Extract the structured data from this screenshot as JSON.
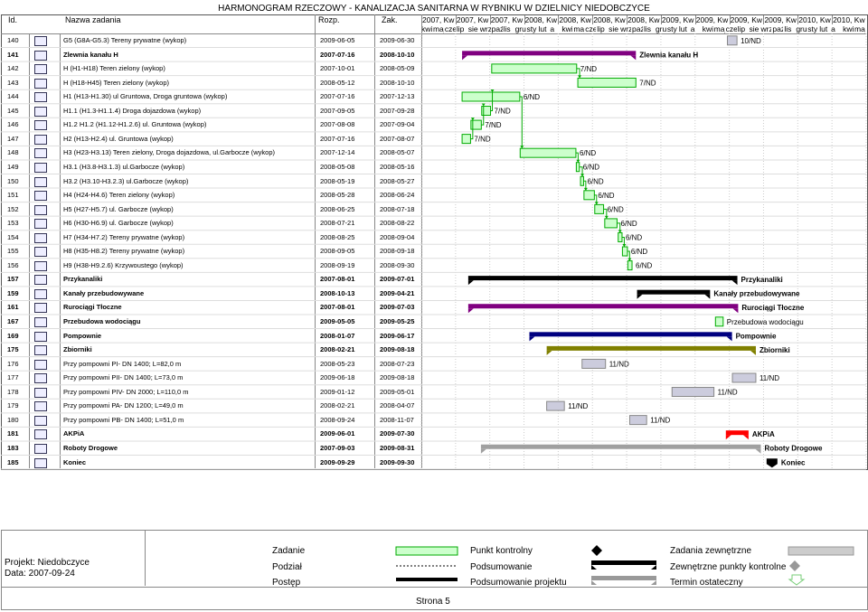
{
  "title": "HARMONOGRAM RZECZOWY - KANALIZACJA SANITARNA W RYBNIKU W DZIELNICY NIEDOBCZYCE",
  "columns": {
    "id": "Id.",
    "name": "Nazwa zadania",
    "start": "Rozp.",
    "end": "Zak."
  },
  "timeline_years": [
    "2007, Kw",
    "2007, Kw",
    "2007, Kw",
    "2008, Kw",
    "2008, Kw",
    "2008, Kw",
    "2008, Kw",
    "2009, Kw",
    "2009, Kw",
    "2009, Kw",
    "2009, Kw",
    "2010, Kw",
    "2010, Kw"
  ],
  "timeline_months": [
    "kwi",
    "maj",
    "cze",
    "lip",
    "sie",
    "wrz",
    "paź",
    "lis",
    "gru",
    "sty",
    "lut",
    "a",
    "kwi",
    "maj",
    "cze",
    "lip",
    "sie",
    "wrz",
    "paź",
    "lis",
    "gru",
    "sty",
    "lut",
    "a",
    "kwi",
    "maj",
    "cze",
    "lip",
    "sie",
    "wrz",
    "paź",
    "lis",
    "gru",
    "sty",
    "lut",
    "a",
    "kwi",
    "maj"
  ],
  "rows": [
    {
      "id": "140",
      "name": "G5 (G8A-G5.3) Tereny prywatne (wykop)",
      "start": "2009-06-05",
      "end": "2009-06-30",
      "bold": false,
      "label": "10/ND"
    },
    {
      "id": "141",
      "name": "Zlewnia kanału H",
      "start": "2007-07-16",
      "end": "2008-10-10",
      "bold": true,
      "label": "Zlewnia kanału H"
    },
    {
      "id": "142",
      "name": "H (H1-H18) Teren zielony (wykop)",
      "start": "2007-10-01",
      "end": "2008-05-09",
      "bold": false,
      "label": "7/ND"
    },
    {
      "id": "143",
      "name": "H (H18-H45) Teren zielony (wykop)",
      "start": "2008-05-12",
      "end": "2008-10-10",
      "bold": false,
      "label": "7/ND"
    },
    {
      "id": "144",
      "name": "H1 (H13-H1.30) ul Gruntowa, Droga gruntowa (wykop)",
      "start": "2007-07-16",
      "end": "2007-12-13",
      "bold": false,
      "label": "6/ND"
    },
    {
      "id": "145",
      "name": "H1.1 (H1.3-H1.1.4) Droga dojazdowa (wykop)",
      "start": "2007-09-05",
      "end": "2007-09-28",
      "bold": false,
      "label": "7/ND"
    },
    {
      "id": "146",
      "name": "H1.2 H1.2 (H1.12-H1.2.6) ul. Gruntowa (wykop)",
      "start": "2007-08-08",
      "end": "2007-09-04",
      "bold": false,
      "label": "7/ND"
    },
    {
      "id": "147",
      "name": "H2 (H13-H2.4) ul. Gruntowa (wykop)",
      "start": "2007-07-16",
      "end": "2007-08-07",
      "bold": false,
      "label": "7/ND"
    },
    {
      "id": "148",
      "name": "H3 (H23-H3.13) Teren zielony, Droga dojazdowa, ul.Garbocze (wykop)",
      "start": "2007-12-14",
      "end": "2008-05-07",
      "bold": false,
      "label": "6/ND"
    },
    {
      "id": "149",
      "name": "H3.1 (H3.8-H3.1.3) ul.Garbocze (wykop)",
      "start": "2008-05-08",
      "end": "2008-05-16",
      "bold": false,
      "label": "6/ND"
    },
    {
      "id": "150",
      "name": "H3.2 (H3.10-H3.2.3) ul.Garbocze (wykop)",
      "start": "2008-05-19",
      "end": "2008-05-27",
      "bold": false,
      "label": "6/ND"
    },
    {
      "id": "151",
      "name": "H4 (H24-H4.6) Teren zielony (wykop)",
      "start": "2008-05-28",
      "end": "2008-06-24",
      "bold": false,
      "label": "6/ND"
    },
    {
      "id": "152",
      "name": "H5 (H27-H5.7) ul. Garbocze (wykop)",
      "start": "2008-06-25",
      "end": "2008-07-18",
      "bold": false,
      "label": "6/ND"
    },
    {
      "id": "153",
      "name": "H6 (H30-H6.9) ul. Garbocze (wykop)",
      "start": "2008-07-21",
      "end": "2008-08-22",
      "bold": false,
      "label": "6/ND"
    },
    {
      "id": "154",
      "name": "H7 (H34-H7.2) Tereny prywatne (wykop)",
      "start": "2008-08-25",
      "end": "2008-09-04",
      "bold": false,
      "label": "6/ND"
    },
    {
      "id": "155",
      "name": "H8 (H35-H8.2) Tereny prywatne (wykop)",
      "start": "2008-09-05",
      "end": "2008-09-18",
      "bold": false,
      "label": "6/ND"
    },
    {
      "id": "156",
      "name": "H9 (H38-H9.2.6) Krzywoustego (wykop)",
      "start": "2008-09-19",
      "end": "2008-09-30",
      "bold": false,
      "label": "6/ND"
    },
    {
      "id": "157",
      "name": "Przykanaliki",
      "start": "2007-08-01",
      "end": "2009-07-01",
      "bold": true,
      "label": "Przykanaliki"
    },
    {
      "id": "159",
      "name": "Kanały przebudowywane",
      "start": "2008-10-13",
      "end": "2009-04-21",
      "bold": true,
      "label": "Kanały przebudowywane"
    },
    {
      "id": "161",
      "name": "Rurociągi Tłoczne",
      "start": "2007-08-01",
      "end": "2009-07-03",
      "bold": true,
      "label": "Rurociągi Tłoczne"
    },
    {
      "id": "167",
      "name": "Przebudowa wodociągu",
      "start": "2009-05-05",
      "end": "2009-05-25",
      "bold": true,
      "label": "Przebudowa wodociągu"
    },
    {
      "id": "169",
      "name": "Pompownie",
      "start": "2008-01-07",
      "end": "2009-06-17",
      "bold": true,
      "label": "Pompownie"
    },
    {
      "id": "175",
      "name": "Zbiorniki",
      "start": "2008-02-21",
      "end": "2009-08-18",
      "bold": true,
      "label": "Zbiorniki"
    },
    {
      "id": "176",
      "name": "Przy pompowni  PI- DN 1400; L=82,0 m",
      "start": "2008-05-23",
      "end": "2008-07-23",
      "bold": false,
      "label": "11/ND"
    },
    {
      "id": "177",
      "name": "Przy pompowni  PII- DN 1400; L=73,0 m",
      "start": "2009-06-18",
      "end": "2009-08-18",
      "bold": false,
      "label": "11/ND"
    },
    {
      "id": "178",
      "name": "Przy pompowni  PIV- DN 2000; L=110,0 m",
      "start": "2009-01-12",
      "end": "2009-05-01",
      "bold": false,
      "label": "11/ND"
    },
    {
      "id": "179",
      "name": "Przy pompowni  PA- DN 1200; L=49,0 m",
      "start": "2008-02-21",
      "end": "2008-04-07",
      "bold": false,
      "label": "11/ND"
    },
    {
      "id": "180",
      "name": "Przy pompowni PB- DN 1400; L=51,0 m",
      "start": "2008-09-24",
      "end": "2008-11-07",
      "bold": false,
      "label": "11/ND"
    },
    {
      "id": "181",
      "name": "AKPiA",
      "start": "2009-06-01",
      "end": "2009-07-30",
      "bold": true,
      "label": "AKPiA"
    },
    {
      "id": "183",
      "name": "Roboty Drogowe",
      "start": "2007-09-03",
      "end": "2009-08-31",
      "bold": true,
      "label": "Roboty Drogowe"
    },
    {
      "id": "185",
      "name": "Koniec",
      "start": "2009-09-29",
      "end": "2009-09-30",
      "bold": true,
      "label": "Koniec"
    }
  ],
  "footer": {
    "project": "Projekt: Niedobczyce",
    "date": "Data: 2007-09-24",
    "page": "Strona 5",
    "legend": [
      {
        "label": "Zadanie"
      },
      {
        "label": "Punkt kontrolny"
      },
      {
        "label": "Zadania zewnętrzne"
      },
      {
        "label": "Podział"
      },
      {
        "label": "Podsumowanie"
      },
      {
        "label": "Zewnętrzne punkty kontrolne"
      },
      {
        "label": "Postęp"
      },
      {
        "label": "Podsumowanie projektu"
      },
      {
        "label": "Termin ostateczny"
      }
    ]
  },
  "colors": {
    "task": "#ccffcc",
    "task_border": "#00aa00",
    "summary_purple": "#800080",
    "summary_black": "#000000",
    "summary_olive": "#808000",
    "summary_navy": "#000080",
    "summary_red": "#ff0000",
    "summary_grey": "#a0a0a0",
    "external": "#ccccdd"
  }
}
